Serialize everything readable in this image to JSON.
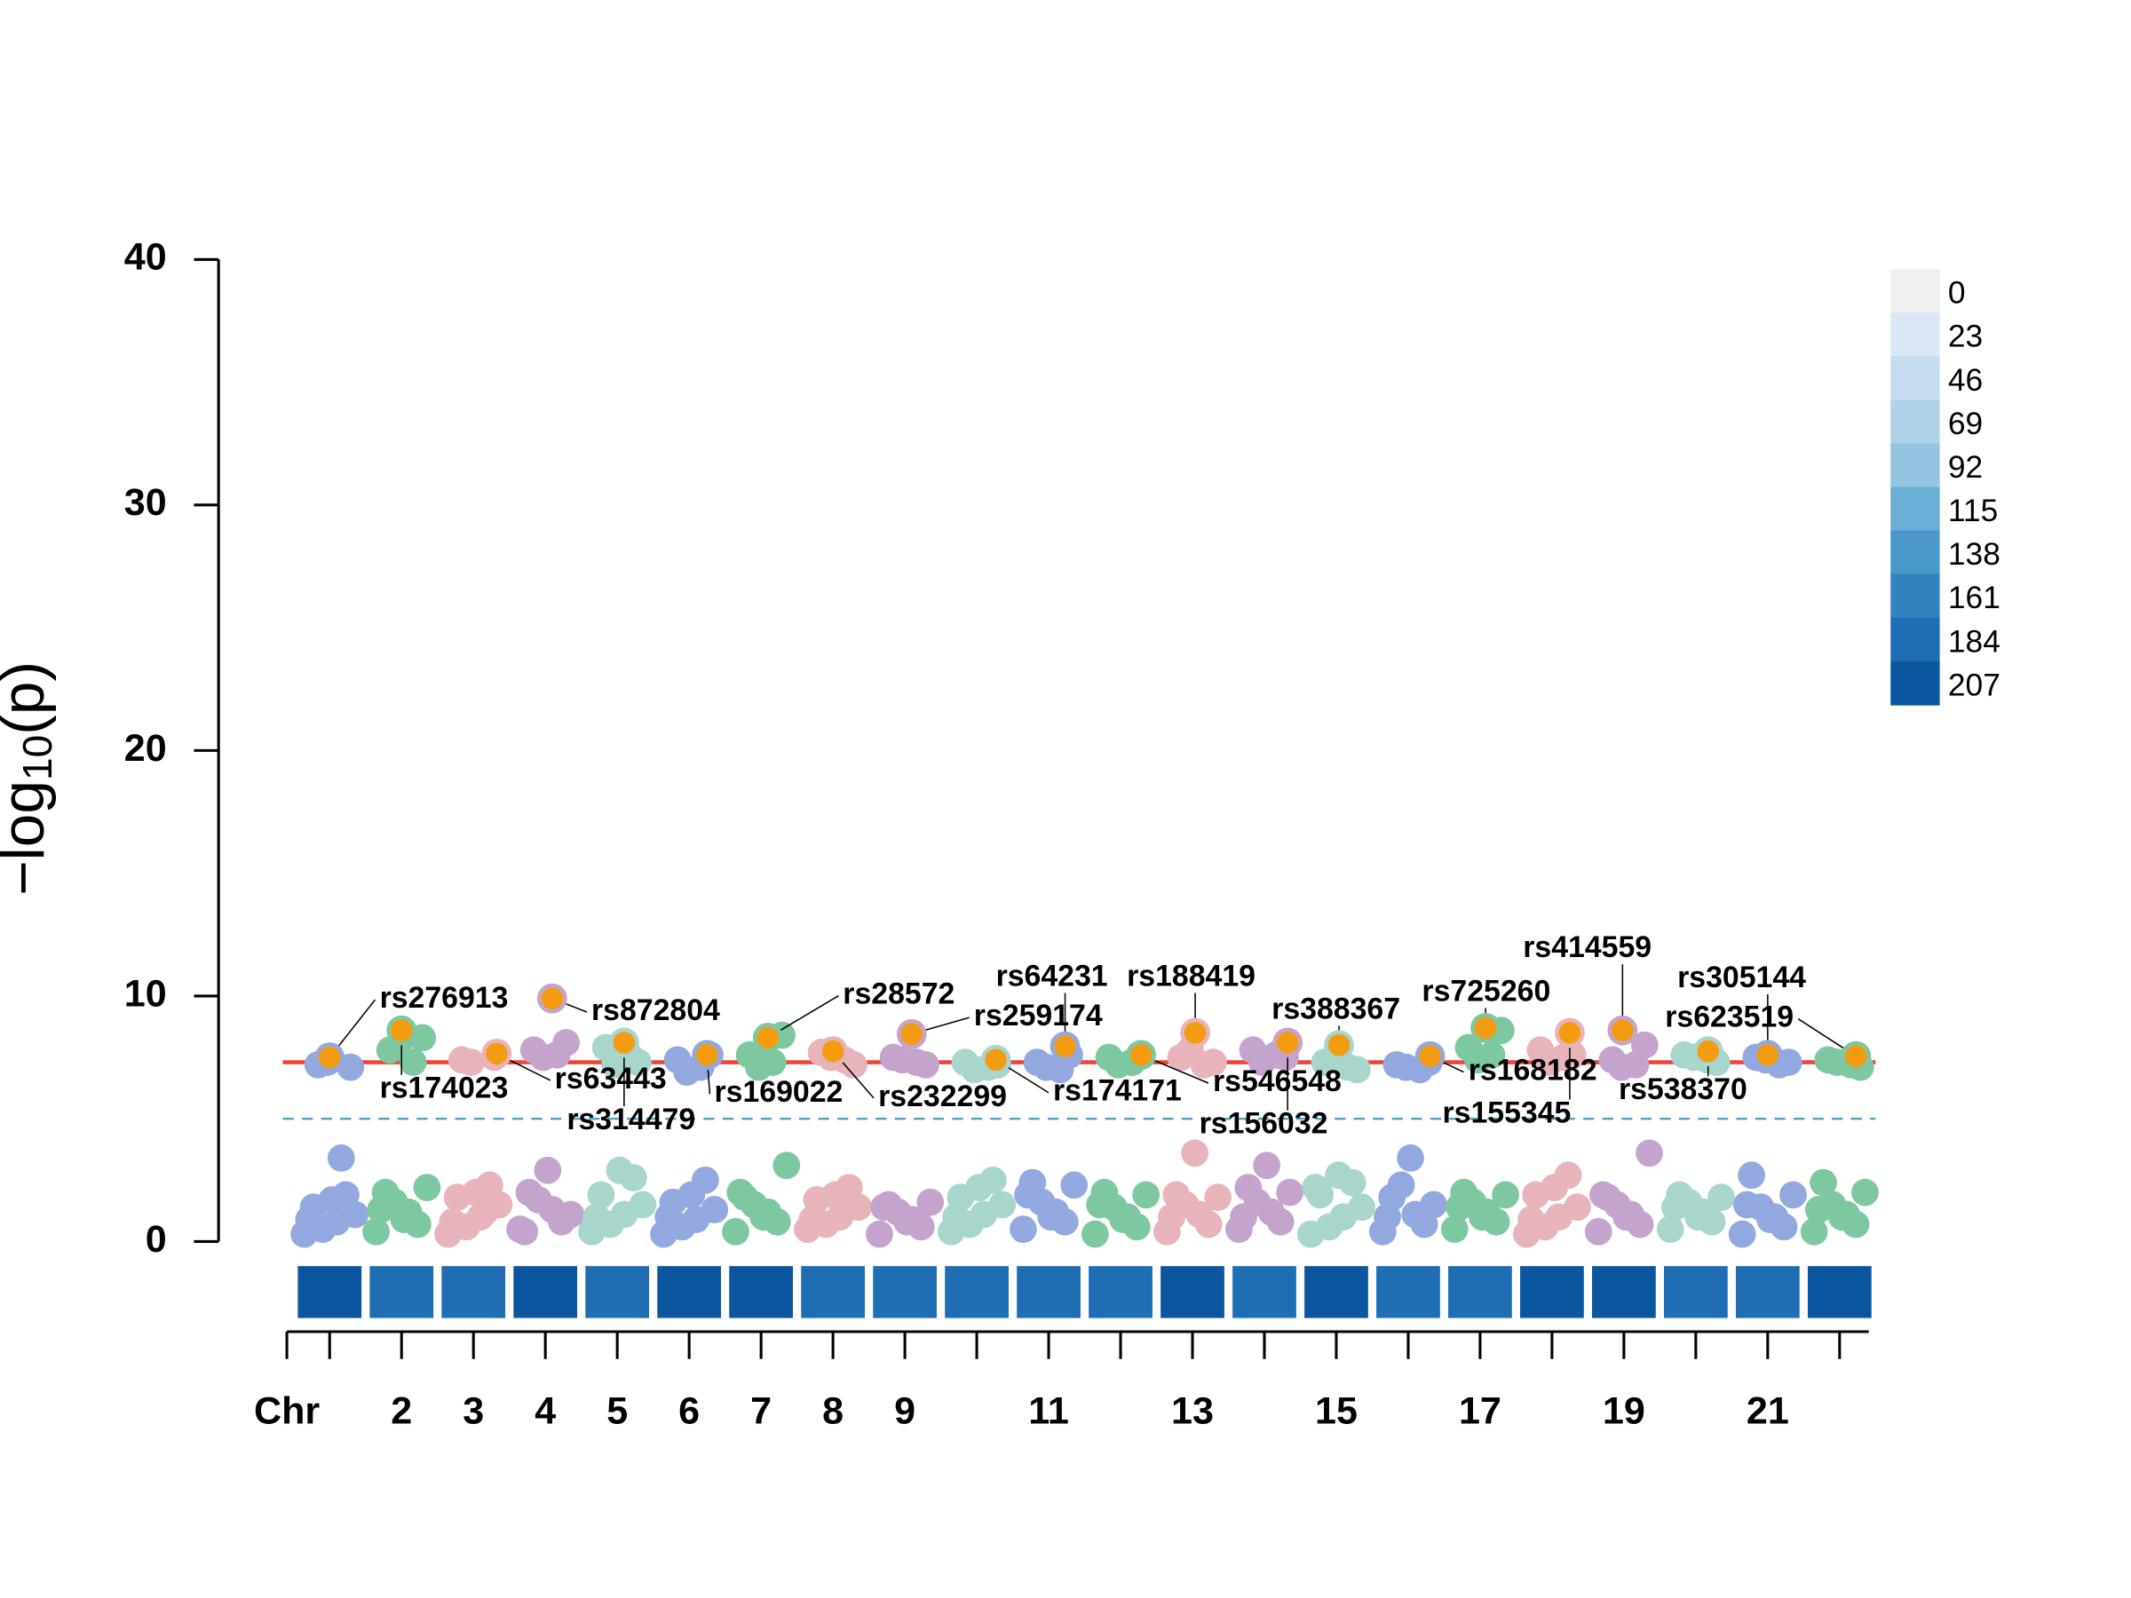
{
  "chart_data": {
    "type": "manhattan",
    "y_label": [
      "−log",
      "10",
      "(p)"
    ],
    "x_label": "Chr",
    "categories": [
      null,
      "2",
      "3",
      "4",
      "5",
      "6",
      "7",
      "8",
      "9",
      null,
      "11",
      null,
      "13",
      null,
      "15",
      null,
      "17",
      null,
      "19",
      null,
      "21",
      null
    ],
    "ylim": [
      0,
      40
    ],
    "yticks": [
      0,
      10,
      20,
      30,
      40
    ],
    "thresholds": [
      {
        "value": 7.3,
        "color": "#e8473a",
        "style": "solid"
      },
      {
        "value": 5,
        "color": "#4aa3c8",
        "style": "dashed"
      }
    ],
    "palette": [
      "#92a8de",
      "#7dc8a0",
      "#e8b4bc",
      "#c4a4cc",
      "#a8d5cc"
    ],
    "lead_color": "#f39c12",
    "chromosomes": [
      {
        "values": [
          0.3,
          0.8,
          1.4,
          1.9,
          0.5,
          1.1,
          1.7,
          0.9,
          3.4,
          7.2,
          7.1,
          7.3
        ]
      },
      {
        "values": [
          0.4,
          1.2,
          2.0,
          0.7,
          1.6,
          2.2,
          0.9,
          1.3,
          7.3,
          7.8,
          8.3,
          8.1
        ]
      },
      {
        "values": [
          0.3,
          1.0,
          1.8,
          2.3,
          0.6,
          1.5,
          2.0,
          0.8,
          1.2,
          7.4,
          7.5,
          7.3
        ]
      },
      {
        "values": [
          0.5,
          1.3,
          2.0,
          0.8,
          1.7,
          1.1,
          2.9,
          0.4,
          7.6,
          7.8,
          8.1,
          7.5
        ]
      },
      {
        "values": [
          0.4,
          1.1,
          1.9,
          2.6,
          0.7,
          1.5,
          2.9,
          1.0,
          7.6,
          7.9,
          7.3,
          7.2
        ]
      },
      {
        "values": [
          0.3,
          0.9,
          1.6,
          2.5,
          0.6,
          1.3,
          1.9,
          1.0,
          7.1,
          7.4,
          7.6,
          6.9
        ]
      },
      {
        "values": [
          0.4,
          1.2,
          1.8,
          0.8,
          1.5,
          3.1,
          1.0,
          2.0,
          7.3,
          7.6,
          8.4,
          7.1
        ]
      },
      {
        "values": [
          0.5,
          1.0,
          1.7,
          2.2,
          0.7,
          1.4,
          1.9,
          0.9,
          7.4,
          7.7,
          7.2,
          7.5
        ]
      },
      {
        "values": [
          0.3,
          0.9,
          1.5,
          0.6,
          1.2,
          1.6,
          0.8,
          1.4,
          7.3,
          7.5,
          7.2,
          7.4
        ]
      },
      {
        "values": [
          0.4,
          1.1,
          1.8,
          2.5,
          0.7,
          1.5,
          2.2,
          1.0,
          7.1,
          7.3,
          7.2,
          7.0
        ]
      },
      {
        "values": [
          0.5,
          1.2,
          2.4,
          0.8,
          1.6,
          2.3,
          1.0,
          1.9,
          7.0,
          7.3,
          7.6,
          7.1
        ]
      },
      {
        "values": [
          0.3,
          1.0,
          2.0,
          0.6,
          1.4,
          1.9,
          0.9,
          1.5,
          7.3,
          7.5,
          7.6,
          7.2
        ]
      },
      {
        "values": [
          0.4,
          1.1,
          1.9,
          0.7,
          1.5,
          1.8,
          3.6,
          1.0,
          7.2,
          7.5,
          7.3,
          7.8
        ]
      },
      {
        "values": [
          0.5,
          1.2,
          2.2,
          0.8,
          1.6,
          2.0,
          3.1,
          1.0,
          7.6,
          7.8,
          7.5,
          7.3
        ]
      },
      {
        "values": [
          0.3,
          1.0,
          1.9,
          2.4,
          0.6,
          1.4,
          2.7,
          2.2,
          7.1,
          7.3,
          7.0,
          7.5
        ]
      },
      {
        "values": [
          0.4,
          1.1,
          1.8,
          0.7,
          2.3,
          1.5,
          3.4,
          1.0,
          7.0,
          7.2,
          7.3,
          7.1
        ]
      },
      {
        "values": [
          0.5,
          1.2,
          2.0,
          0.8,
          1.6,
          1.9,
          1.0,
          1.4,
          7.6,
          7.9,
          8.6,
          7.4
        ]
      },
      {
        "values": [
          0.3,
          1.0,
          1.9,
          2.7,
          0.6,
          1.4,
          2.2,
          0.9,
          7.5,
          7.8,
          7.6,
          7.3
        ]
      },
      {
        "values": [
          0.4,
          1.1,
          1.8,
          0.7,
          1.5,
          3.6,
          1.0,
          1.9,
          7.2,
          7.4,
          8.0,
          7.1
        ]
      },
      {
        "values": [
          0.5,
          1.2,
          1.9,
          0.8,
          1.6,
          1.8,
          1.0,
          1.4,
          7.4,
          7.6,
          7.3,
          7.5
        ]
      },
      {
        "values": [
          0.3,
          1.0,
          2.7,
          0.6,
          1.4,
          1.9,
          0.9,
          1.5,
          7.2,
          7.5,
          7.3,
          7.4
        ]
      },
      {
        "values": [
          0.4,
          1.1,
          2.4,
          0.7,
          1.5,
          2.0,
          1.0,
          1.3,
          7.2,
          7.4,
          7.1,
          7.3
        ]
      }
    ],
    "snps": [
      {
        "name": "rs276913",
        "chr": 1,
        "value": 7.5
      },
      {
        "name": "rs174023",
        "chr": 2,
        "value": 8.6
      },
      {
        "name": "rs63443",
        "chr": 3,
        "value": 7.65
      },
      {
        "name": "rs872804",
        "chr": 4,
        "value": 9.9
      },
      {
        "name": "rs314479",
        "chr": 5,
        "value": 8.1
      },
      {
        "name": "rs169022",
        "chr": 6,
        "value": 7.6
      },
      {
        "name": "rs28572",
        "chr": 7,
        "value": 8.3
      },
      {
        "name": "rs232299",
        "chr": 8,
        "value": 7.75
      },
      {
        "name": "rs259174",
        "chr": 9,
        "value": 8.45
      },
      {
        "name": "rs174171",
        "chr": 10,
        "value": 7.4
      },
      {
        "name": "rs64231",
        "chr": 11,
        "value": 7.95
      },
      {
        "name": "rs546548",
        "chr": 12,
        "value": 7.6
      },
      {
        "name": "rs188419",
        "chr": 13,
        "value": 8.5
      },
      {
        "name": "rs156032",
        "chr": 14,
        "value": 8.1
      },
      {
        "name": "rs388367",
        "chr": 15,
        "value": 8.0
      },
      {
        "name": "rs168182",
        "chr": 16,
        "value": 7.55
      },
      {
        "name": "rs725260",
        "chr": 17,
        "value": 8.7
      },
      {
        "name": "rs155345",
        "chr": 18,
        "value": 8.5
      },
      {
        "name": "rs414559",
        "chr": 19,
        "value": 8.6
      },
      {
        "name": "rs538370",
        "chr": 20,
        "value": 7.75
      },
      {
        "name": "rs305144",
        "chr": 21,
        "value": 7.6
      },
      {
        "name": "rs623519",
        "chr": 22,
        "value": 7.55
      }
    ],
    "density": [
      200,
      195,
      190,
      207,
      185,
      200,
      198,
      190,
      192,
      188,
      195,
      190,
      205,
      185,
      207,
      195,
      190,
      207,
      200,
      188,
      180,
      207
    ],
    "legend": {
      "ticks": [
        0,
        23,
        46,
        69,
        92,
        115,
        138,
        161,
        184,
        207
      ],
      "colors": [
        "#f0f0f0",
        "#dae8f5",
        "#c6dbef",
        "#b0d2e7",
        "#94c4df",
        "#6baed6",
        "#4a98c9",
        "#3282be",
        "#1f6eb3",
        "#0c56a0"
      ]
    }
  }
}
